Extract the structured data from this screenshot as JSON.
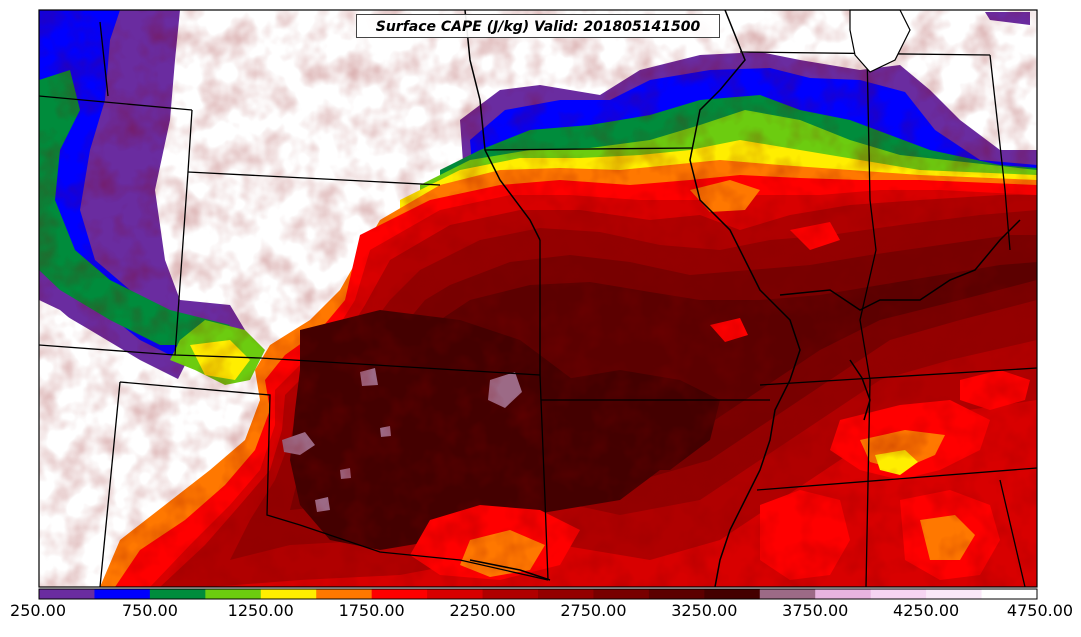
{
  "title": "Surface CAPE (J/kg) Valid: 201805141500",
  "colorbar": {
    "bins": [
      {
        "min": 250,
        "max": 500,
        "color": "#6a2ca0"
      },
      {
        "min": 500,
        "max": 750,
        "color": "#0000ff"
      },
      {
        "min": 750,
        "max": 1000,
        "color": "#008c3c"
      },
      {
        "min": 1000,
        "max": 1250,
        "color": "#6ccc10"
      },
      {
        "min": 1250,
        "max": 1500,
        "color": "#ffee00"
      },
      {
        "min": 1500,
        "max": 1750,
        "color": "#ff7800"
      },
      {
        "min": 1750,
        "max": 2000,
        "color": "#ff0000"
      },
      {
        "min": 2000,
        "max": 2250,
        "color": "#d80000"
      },
      {
        "min": 2250,
        "max": 2500,
        "color": "#b00000"
      },
      {
        "min": 2500,
        "max": 2750,
        "color": "#940000"
      },
      {
        "min": 2750,
        "max": 3000,
        "color": "#780000"
      },
      {
        "min": 3000,
        "max": 3250,
        "color": "#5c0000"
      },
      {
        "min": 3250,
        "max": 3500,
        "color": "#440000"
      },
      {
        "min": 3500,
        "max": 3750,
        "color": "#9c6a86"
      },
      {
        "min": 3750,
        "max": 4000,
        "color": "#e8b4e0"
      },
      {
        "min": 4000,
        "max": 4250,
        "color": "#f6d4f2"
      },
      {
        "min": 4250,
        "max": 4500,
        "color": "#fae8f8"
      },
      {
        "min": 4500,
        "max": 4750,
        "color": "#ffffff"
      }
    ],
    "tick_labels": [
      "250.00",
      "750.00",
      "1250.00",
      "1750.00",
      "2250.00",
      "2750.00",
      "3250.00",
      "3750.00",
      "4250.00",
      "4750.00"
    ]
  }
}
